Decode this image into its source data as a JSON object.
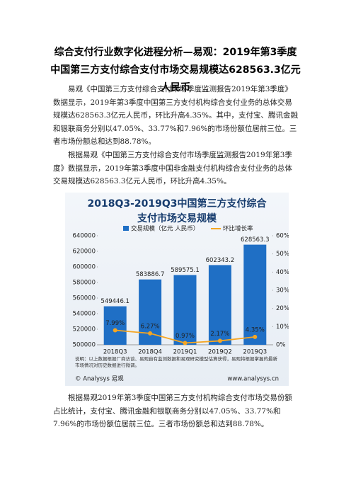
{
  "document": {
    "title": "综合支付行业数字化进程分析—易观：2019年第3季度中国第三方支付综合支付市场交易规模达628563.3亿元人民币",
    "paragraphs": [
      "易观《中国第三方支付综合支付市场季度监测报告2019年第3季度》数据显示，2019年第3季度中国第三方支付机构综合支付业务的总体交易规模达628563.3亿元人民币，环比升高4.35%。其中，支付宝、腾讯金融和银联商务分别以47.05%、33.77%和7.96%的市场份额位居前三位。三者市场份额总和达到88.78%。",
      "根据易观《中国第三方支付综合支付市场季度监测报告2019年第3季度》数据显示，2019年第3季度中国非金融支付机构综合支付业务的总体交易规模达628563.3亿元人民币，环比升高4.35%。",
      "根据易观2019年第3季度中国第三方支付机构综合支付市场交易份额占比统计，支付宝、腾讯金融和银联商务分别以47.05%、33.77%和7.96%的市场份额位居前三位。三者市场份额总和达到88.78%。"
    ]
  },
  "chart_data": {
    "type": "bar",
    "title": "2018Q3-2019Q3中国第三方支付综合支付市场交易规模",
    "categories": [
      "2018Q3",
      "2018Q4",
      "2019Q1",
      "2019Q2",
      "2019Q3"
    ],
    "series": [
      {
        "name": "交易规模（亿元 人民币）",
        "color": "#1f6fc5",
        "values": [
          549446.1,
          583886.7,
          589575.1,
          602343.2,
          628563.3
        ]
      },
      {
        "name": "环比增长率",
        "color": "#f5a623",
        "type": "line",
        "axis": "y2",
        "values": [
          7.99,
          6.27,
          0.97,
          2.17,
          4.35
        ],
        "value_labels": [
          "7.99%",
          "6.27%",
          "0.97%",
          "2.17%",
          "4.35%"
        ]
      }
    ],
    "ylim": [
      500000,
      640000
    ],
    "yticks": [
      500000,
      520000,
      540000,
      560000,
      580000,
      600000,
      620000,
      640000
    ],
    "y2lim": [
      0,
      60
    ],
    "y2ticks": [
      {
        "value": 0,
        "label": "0%"
      },
      {
        "value": 10,
        "label": "10%"
      },
      {
        "value": 20,
        "label": "20%"
      },
      {
        "value": 30,
        "label": "30%"
      },
      {
        "value": 40,
        "label": "40%"
      },
      {
        "value": 50,
        "label": "50%"
      },
      {
        "value": 60,
        "label": "60%"
      }
    ],
    "note": "说明：以上数据根据厂商访谈、易观自有监测数据和易观研究模型估算获得，易观将根据掌握的最新市场情况对历史数据进行微调。",
    "source": "© Analysys 易观",
    "website": "www.analysys.cn"
  }
}
